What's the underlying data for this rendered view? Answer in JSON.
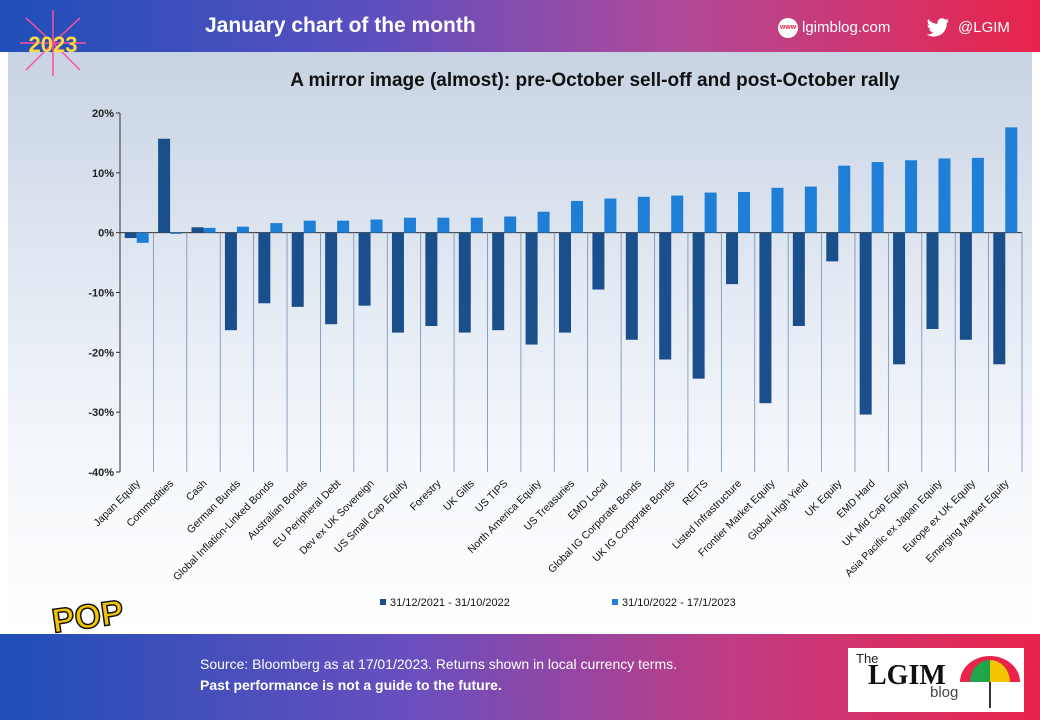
{
  "header": {
    "title": "January chart of the month",
    "blog_url": "lgimblog.com",
    "www_label": "www",
    "twitter_handle": "@LGIM",
    "badge_text": "2023"
  },
  "footer": {
    "source": "Source: Bloomberg as at 17/01/2023. Returns shown in local currency terms.",
    "disclaimer": "Past performance is not a guide to the future.",
    "logo_the": "The",
    "logo_main": "LGIM",
    "logo_blog": "blog",
    "pop_text": "POP"
  },
  "colors": {
    "series1": "#1a4f8c",
    "series2": "#1f7fd6",
    "header_start": "#1f4fb8",
    "header_end": "#e8244a"
  },
  "chart_data": {
    "type": "bar",
    "title": "A mirror image (almost): pre-October sell-off and post-October rally",
    "xlabel": "",
    "ylabel": "",
    "ylim": [
      -40,
      20
    ],
    "yticks": [
      20,
      10,
      0,
      -10,
      -20,
      -30,
      -40
    ],
    "ytick_labels": [
      "20%",
      "10%",
      "0%",
      "-10%",
      "-20%",
      "-30%",
      "-40%"
    ],
    "grid": false,
    "legend_position": "bottom",
    "categories": [
      "Japan Equity",
      "Commodities",
      "Cash",
      "German Bunds",
      "Global Inflation-Linked Bonds",
      "Australian Bonds",
      "EU Peripheral Debt",
      "Dev ex UK Sovereign",
      "US Small Cap Equity",
      "Forestry",
      "UK Gilts",
      "US TIPS",
      "North America Equity",
      "US Treasuries",
      "EMD Local",
      "Global IG Corporate Bonds",
      "UK IG Corporate Bonds",
      "REITS",
      "Listed Infrastructure",
      "Frontier Market Equity",
      "Global High Yield",
      "UK Equity",
      "EMD Hard",
      "UK Mid Cap Equity",
      "Asia Pacific ex Japan Equity",
      "Europe ex UK Equity",
      "Emerging Market Equity"
    ],
    "series": [
      {
        "name": "31/12/2021 - 31/10/2022",
        "values": [
          -0.9,
          15.7,
          0.9,
          -16.3,
          -11.8,
          -12.4,
          -15.3,
          -12.2,
          -16.7,
          -15.6,
          -16.7,
          -16.3,
          -18.7,
          -16.7,
          -9.5,
          -17.9,
          -21.2,
          -24.4,
          -8.6,
          -28.5,
          -15.6,
          -4.8,
          -30.4,
          -22.0,
          -16.1,
          -17.9,
          -22.0
        ]
      },
      {
        "name": "31/10/2022 - 17/1/2023",
        "values": [
          -1.7,
          -0.2,
          0.8,
          1.0,
          1.6,
          2.0,
          2.0,
          2.2,
          2.5,
          2.5,
          2.5,
          2.7,
          3.5,
          5.3,
          5.7,
          6.0,
          6.2,
          6.7,
          6.8,
          7.5,
          7.7,
          11.2,
          11.8,
          12.1,
          12.4,
          12.5,
          17.6
        ]
      }
    ]
  }
}
